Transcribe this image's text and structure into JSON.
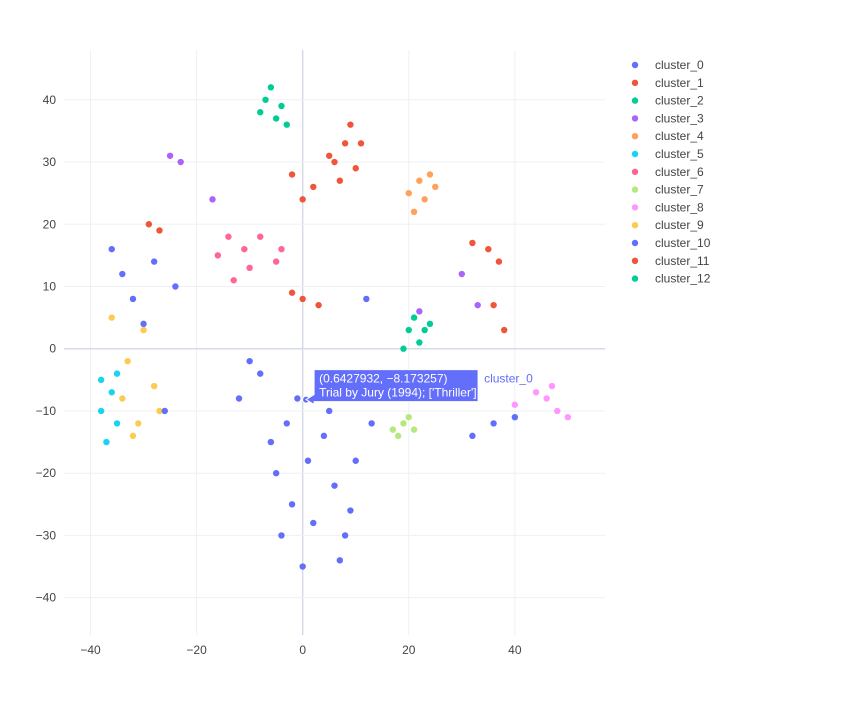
{
  "chart_data": {
    "type": "scatter",
    "xlim": [
      -45,
      57
    ],
    "ylim": [
      -46,
      48
    ],
    "x_ticks": [
      -40,
      -20,
      0,
      20,
      40
    ],
    "y_ticks": [
      -40,
      -30,
      -20,
      -10,
      0,
      10,
      20,
      30,
      40
    ],
    "x_tick_labels": [
      "−40",
      "−20",
      "0",
      "20",
      "40"
    ],
    "y_tick_labels": [
      "−40",
      "−30",
      "−20",
      "−10",
      "0",
      "10",
      "20",
      "30",
      "40"
    ],
    "grid": true,
    "legend_position": "top-right",
    "series": [
      {
        "name": "cluster_0",
        "color": "#636efa",
        "points": [
          [
            -1,
            -8
          ],
          [
            -5,
            -20
          ],
          [
            2,
            -28
          ],
          [
            -8,
            -4
          ],
          [
            4,
            -14
          ],
          [
            -3,
            -12
          ],
          [
            6,
            -22
          ],
          [
            8,
            -30
          ],
          [
            0,
            -35
          ],
          [
            -6,
            -15
          ],
          [
            3,
            -5
          ],
          [
            -10,
            -2
          ],
          [
            10,
            -18
          ],
          [
            -2,
            -25
          ],
          [
            5,
            -10
          ],
          [
            7,
            -34
          ],
          [
            -12,
            -8
          ],
          [
            1,
            -18
          ],
          [
            -4,
            -30
          ],
          [
            9,
            -26
          ]
        ]
      },
      {
        "name": "cluster_1",
        "color": "#EF553B",
        "points": [
          [
            8,
            33
          ],
          [
            10,
            29
          ],
          [
            6,
            30
          ],
          [
            9,
            36
          ],
          [
            5,
            31
          ],
          [
            11,
            33
          ],
          [
            7,
            27
          ]
        ]
      },
      {
        "name": "cluster_2",
        "color": "#00cc96",
        "points": [
          [
            -7,
            40
          ],
          [
            -5,
            37
          ],
          [
            -8,
            38
          ],
          [
            -3,
            36
          ],
          [
            -6,
            42
          ],
          [
            -4,
            39
          ]
        ]
      },
      {
        "name": "cluster_3",
        "color": "#ab63fa",
        "points": [
          [
            -25,
            31
          ],
          [
            -23,
            30
          ],
          [
            -17,
            24
          ],
          [
            30,
            12
          ],
          [
            33,
            7
          ],
          [
            22,
            6
          ]
        ]
      },
      {
        "name": "cluster_4",
        "color": "#FFA15A",
        "points": [
          [
            22,
            27
          ],
          [
            20,
            25
          ],
          [
            24,
            28
          ],
          [
            23,
            24
          ],
          [
            21,
            22
          ],
          [
            25,
            26
          ]
        ]
      },
      {
        "name": "cluster_5",
        "color": "#19d3f3",
        "points": [
          [
            -38,
            -5
          ],
          [
            -36,
            -7
          ],
          [
            -35,
            -4
          ],
          [
            -38,
            -10
          ],
          [
            -37,
            -15
          ],
          [
            -35,
            -12
          ]
        ]
      },
      {
        "name": "cluster_6",
        "color": "#FF6692",
        "points": [
          [
            -16,
            15
          ],
          [
            -14,
            18
          ],
          [
            -11,
            16
          ],
          [
            -8,
            18
          ],
          [
            -5,
            14
          ],
          [
            -10,
            13
          ],
          [
            -13,
            11
          ],
          [
            -4,
            16
          ]
        ]
      },
      {
        "name": "cluster_7",
        "color": "#B6E880",
        "points": [
          [
            17,
            -13
          ],
          [
            19,
            -12
          ],
          [
            21,
            -13
          ],
          [
            18,
            -14
          ],
          [
            20,
            -11
          ]
        ]
      },
      {
        "name": "cluster_8",
        "color": "#FF97FF",
        "points": [
          [
            46,
            -8
          ],
          [
            48,
            -10
          ],
          [
            50,
            -11
          ],
          [
            44,
            -7
          ],
          [
            47,
            -6
          ],
          [
            40,
            -9
          ]
        ]
      },
      {
        "name": "cluster_9",
        "color": "#FECB52",
        "points": [
          [
            -34,
            -8
          ],
          [
            -31,
            -12
          ],
          [
            -33,
            -2
          ],
          [
            -30,
            3
          ],
          [
            -28,
            -6
          ],
          [
            -36,
            5
          ],
          [
            -32,
            -14
          ],
          [
            -27,
            -10
          ]
        ]
      },
      {
        "name": "cluster_10",
        "color": "#636efa",
        "points": [
          [
            -36,
            16
          ],
          [
            -32,
            8
          ],
          [
            -30,
            4
          ],
          [
            -26,
            -10
          ],
          [
            -24,
            10
          ],
          [
            -34,
            12
          ],
          [
            -28,
            14
          ],
          [
            12,
            8
          ],
          [
            13,
            -12
          ],
          [
            36,
            -12
          ],
          [
            32,
            -14
          ],
          [
            40,
            -11
          ]
        ]
      },
      {
        "name": "cluster_11",
        "color": "#EF553B",
        "points": [
          [
            -29,
            20
          ],
          [
            -27,
            19
          ],
          [
            -2,
            28
          ],
          [
            0,
            24
          ],
          [
            2,
            26
          ],
          [
            -2,
            9
          ],
          [
            0,
            8
          ],
          [
            3,
            7
          ],
          [
            32,
            17
          ],
          [
            35,
            16
          ],
          [
            37,
            14
          ],
          [
            36,
            7
          ],
          [
            38,
            3
          ]
        ]
      },
      {
        "name": "cluster_12",
        "color": "#00cc96",
        "points": [
          [
            20,
            3
          ],
          [
            22,
            1
          ],
          [
            24,
            4
          ],
          [
            19,
            0
          ],
          [
            23,
            3
          ],
          [
            21,
            5
          ]
        ]
      }
    ],
    "hover": {
      "x": 0.6427932,
      "y": -8.173257,
      "line1": "(0.6427932, −8.173257)",
      "line2": "Trial by Jury (1994); ['Thriller']",
      "series_label": "cluster_0",
      "color": "#636efa"
    }
  }
}
